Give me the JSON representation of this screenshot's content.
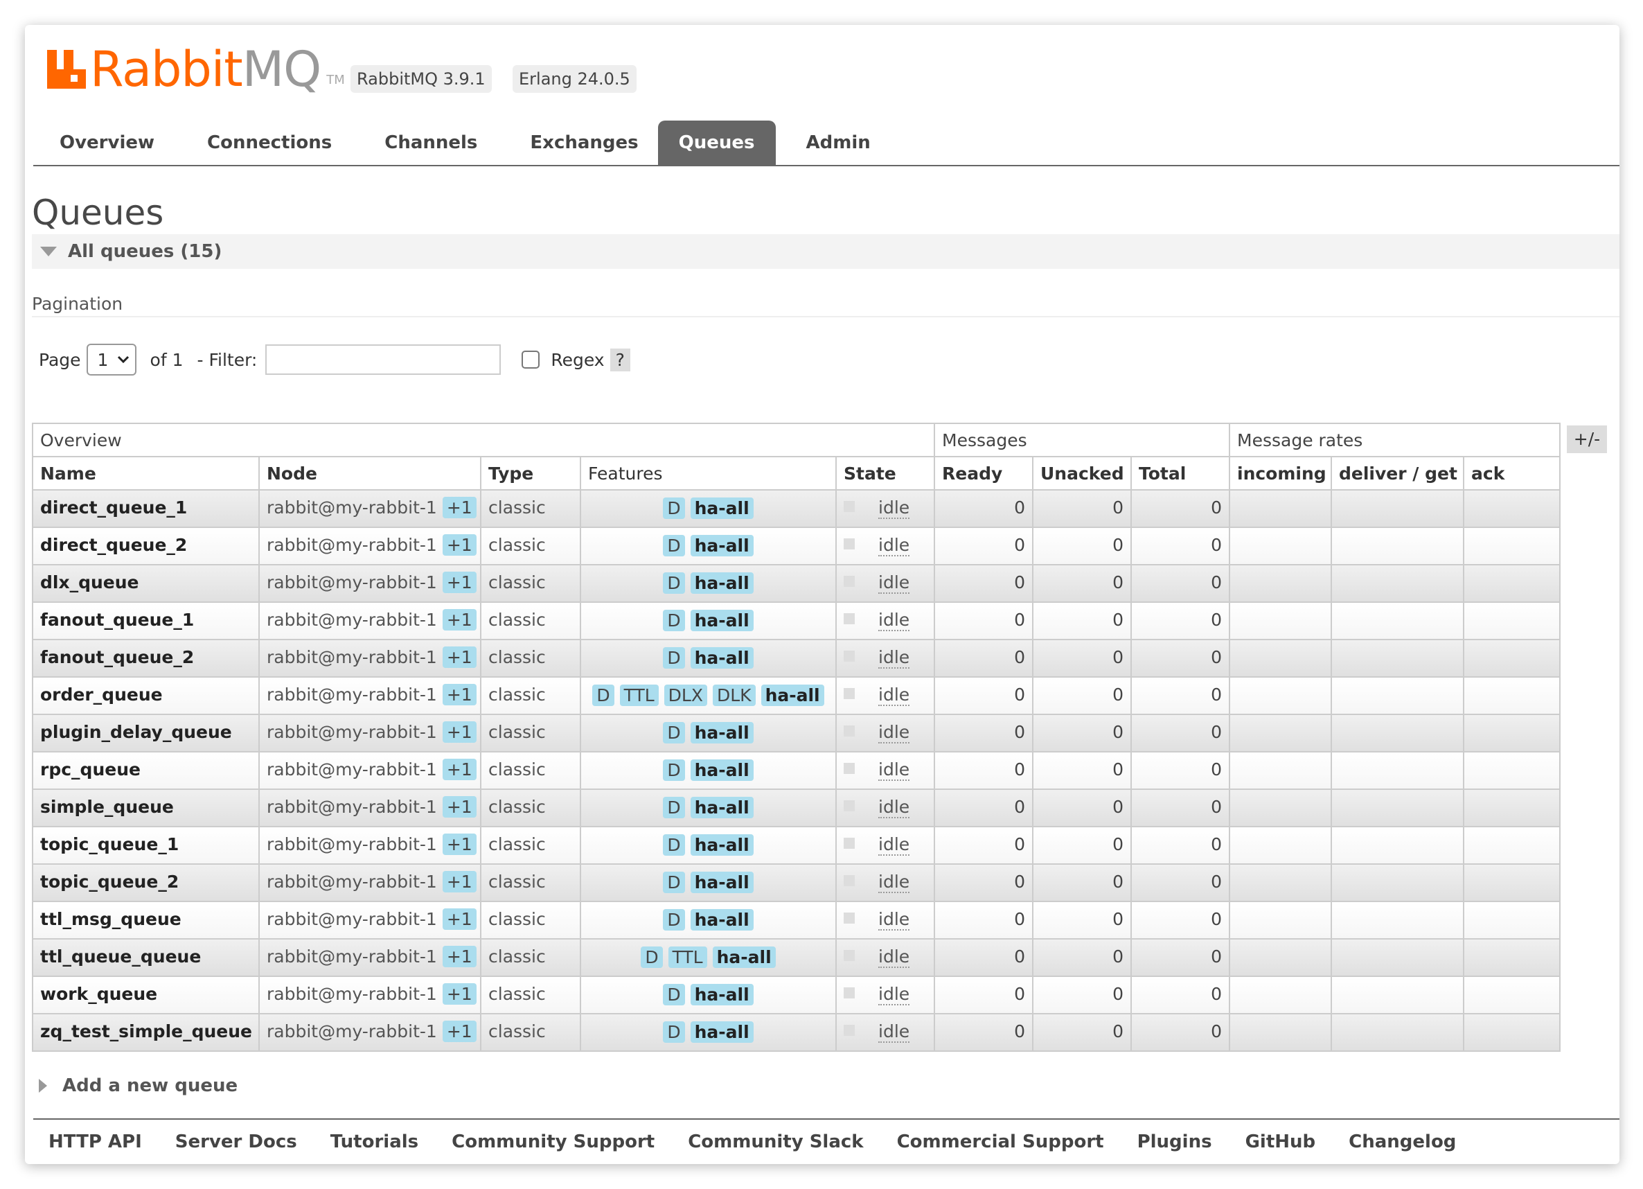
{
  "header": {
    "logo_word": "Rabbit",
    "logo_word_mq": "MQ",
    "logo_tm": "TM",
    "rabbitmq_version": "RabbitMQ 3.9.1",
    "erlang_version": "Erlang 24.0.5"
  },
  "nav": {
    "tabs": [
      "Overview",
      "Connections",
      "Channels",
      "Exchanges",
      "Queues",
      "Admin"
    ],
    "active": "Queues"
  },
  "page": {
    "title": "Queues",
    "section_label": "All queues (15)",
    "pagination_label": "Pagination",
    "page_label": "Page",
    "page_value": "1",
    "of_label": "of 1",
    "filter_label": "- Filter:",
    "filter_value": "",
    "regex_label": "Regex",
    "help_label": "?"
  },
  "table": {
    "group_headers": [
      "Overview",
      "Messages",
      "Message rates"
    ],
    "columns": [
      "Name",
      "Node",
      "Type",
      "Features",
      "State",
      "Ready",
      "Unacked",
      "Total",
      "incoming",
      "deliver / get",
      "ack"
    ],
    "plus_minus": "+/-",
    "rows": [
      {
        "name": "direct_queue_1",
        "node": "rabbit@my-rabbit-1",
        "node_extra": "+1",
        "type": "classic",
        "features": [
          "D",
          "ha-all"
        ],
        "state": "idle",
        "ready": "0",
        "unacked": "0",
        "total": "0"
      },
      {
        "name": "direct_queue_2",
        "node": "rabbit@my-rabbit-1",
        "node_extra": "+1",
        "type": "classic",
        "features": [
          "D",
          "ha-all"
        ],
        "state": "idle",
        "ready": "0",
        "unacked": "0",
        "total": "0"
      },
      {
        "name": "dlx_queue",
        "node": "rabbit@my-rabbit-1",
        "node_extra": "+1",
        "type": "classic",
        "features": [
          "D",
          "ha-all"
        ],
        "state": "idle",
        "ready": "0",
        "unacked": "0",
        "total": "0"
      },
      {
        "name": "fanout_queue_1",
        "node": "rabbit@my-rabbit-1",
        "node_extra": "+1",
        "type": "classic",
        "features": [
          "D",
          "ha-all"
        ],
        "state": "idle",
        "ready": "0",
        "unacked": "0",
        "total": "0"
      },
      {
        "name": "fanout_queue_2",
        "node": "rabbit@my-rabbit-1",
        "node_extra": "+1",
        "type": "classic",
        "features": [
          "D",
          "ha-all"
        ],
        "state": "idle",
        "ready": "0",
        "unacked": "0",
        "total": "0"
      },
      {
        "name": "order_queue",
        "node": "rabbit@my-rabbit-1",
        "node_extra": "+1",
        "type": "classic",
        "features": [
          "D",
          "TTL",
          "DLX",
          "DLK",
          "ha-all"
        ],
        "state": "idle",
        "ready": "0",
        "unacked": "0",
        "total": "0"
      },
      {
        "name": "plugin_delay_queue",
        "node": "rabbit@my-rabbit-1",
        "node_extra": "+1",
        "type": "classic",
        "features": [
          "D",
          "ha-all"
        ],
        "state": "idle",
        "ready": "0",
        "unacked": "0",
        "total": "0"
      },
      {
        "name": "rpc_queue",
        "node": "rabbit@my-rabbit-1",
        "node_extra": "+1",
        "type": "classic",
        "features": [
          "D",
          "ha-all"
        ],
        "state": "idle",
        "ready": "0",
        "unacked": "0",
        "total": "0"
      },
      {
        "name": "simple_queue",
        "node": "rabbit@my-rabbit-1",
        "node_extra": "+1",
        "type": "classic",
        "features": [
          "D",
          "ha-all"
        ],
        "state": "idle",
        "ready": "0",
        "unacked": "0",
        "total": "0"
      },
      {
        "name": "topic_queue_1",
        "node": "rabbit@my-rabbit-1",
        "node_extra": "+1",
        "type": "classic",
        "features": [
          "D",
          "ha-all"
        ],
        "state": "idle",
        "ready": "0",
        "unacked": "0",
        "total": "0"
      },
      {
        "name": "topic_queue_2",
        "node": "rabbit@my-rabbit-1",
        "node_extra": "+1",
        "type": "classic",
        "features": [
          "D",
          "ha-all"
        ],
        "state": "idle",
        "ready": "0",
        "unacked": "0",
        "total": "0"
      },
      {
        "name": "ttl_msg_queue",
        "node": "rabbit@my-rabbit-1",
        "node_extra": "+1",
        "type": "classic",
        "features": [
          "D",
          "ha-all"
        ],
        "state": "idle",
        "ready": "0",
        "unacked": "0",
        "total": "0"
      },
      {
        "name": "ttl_queue_queue",
        "node": "rabbit@my-rabbit-1",
        "node_extra": "+1",
        "type": "classic",
        "features": [
          "D",
          "TTL",
          "ha-all"
        ],
        "state": "idle",
        "ready": "0",
        "unacked": "0",
        "total": "0"
      },
      {
        "name": "work_queue",
        "node": "rabbit@my-rabbit-1",
        "node_extra": "+1",
        "type": "classic",
        "features": [
          "D",
          "ha-all"
        ],
        "state": "idle",
        "ready": "0",
        "unacked": "0",
        "total": "0"
      },
      {
        "name": "zq_test_simple_queue",
        "node": "rabbit@my-rabbit-1",
        "node_extra": "+1",
        "type": "classic",
        "features": [
          "D",
          "ha-all"
        ],
        "state": "idle",
        "ready": "0",
        "unacked": "0",
        "total": "0"
      }
    ]
  },
  "add_queue_label": "Add a new queue",
  "footer": {
    "links": [
      "HTTP API",
      "Server Docs",
      "Tutorials",
      "Community Support",
      "Community Slack",
      "Commercial Support",
      "Plugins",
      "GitHub",
      "Changelog"
    ]
  },
  "colors": {
    "brand_orange": "#ff6600",
    "active_tab": "#666666",
    "feature_tag": "#aaddee"
  }
}
